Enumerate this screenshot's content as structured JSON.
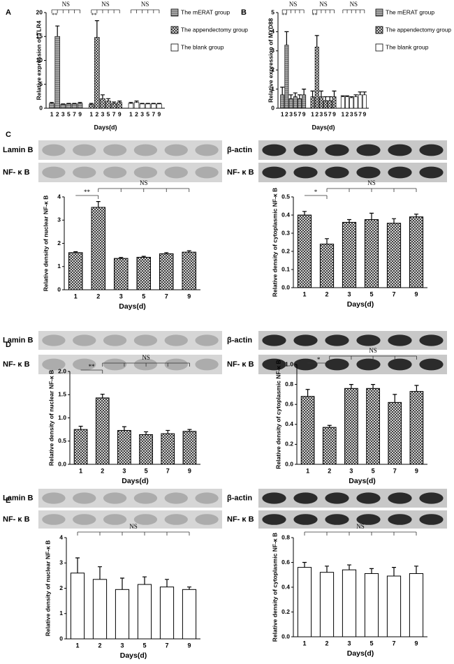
{
  "panel_labels": [
    "A",
    "B",
    "C",
    "D",
    "E"
  ],
  "blots": [
    {
      "left": [
        "Lamin B",
        "NF- κ B"
      ],
      "right": [
        "β-actin",
        "NF- κ B"
      ]
    },
    {
      "left": [
        "Lamin B",
        "NF- κ B"
      ],
      "right": [
        "β-actin",
        "NF- κ B"
      ]
    },
    {
      "left": [
        "Lamin B",
        "NF- κ B"
      ],
      "right": [
        "β-actin",
        "NF- κ B"
      ]
    }
  ],
  "chart_data": [
    {
      "type": "grouped_bar",
      "ylabel": "Relative expression of TLR4",
      "xlabel": "Days(d)",
      "categories": [
        "1",
        "2",
        "3",
        "5",
        "7",
        "9"
      ],
      "ylim": [
        0,
        20
      ],
      "yticks": [
        0,
        5,
        10,
        15,
        20
      ],
      "series": [
        {
          "name": "The mERAT group",
          "color": "#555555",
          "pattern": "hlines",
          "values": [
            1,
            15,
            0.8,
            0.9,
            0.9,
            1
          ],
          "errors": [
            0.2,
            2.2,
            0.1,
            0.1,
            0.1,
            0.2
          ],
          "annotations": [
            "**",
            "NS"
          ]
        },
        {
          "name": "The appendectomy group",
          "color": "#222222",
          "pattern": "cross",
          "values": [
            0.8,
            14.8,
            2,
            1.5,
            1,
            1.2
          ],
          "errors": [
            0.2,
            3.5,
            0.8,
            0.5,
            0.3,
            0.3
          ],
          "annotations": [
            "**",
            "NS"
          ]
        },
        {
          "name": "The blank group",
          "color": "#ffffff",
          "pattern": "none",
          "values": [
            1,
            1.2,
            0.9,
            0.9,
            0.9,
            0.9
          ],
          "errors": [
            0.2,
            0.3,
            0.1,
            0.1,
            0.1,
            0.1
          ],
          "annotations": [
            "NS"
          ]
        }
      ]
    },
    {
      "type": "grouped_bar",
      "ylabel": "Relative expression of MYD88",
      "xlabel": "Days(d)",
      "categories": [
        "1",
        "2",
        "3",
        "5",
        "7",
        "9"
      ],
      "ylim": [
        0,
        5
      ],
      "yticks": [
        0,
        1,
        2,
        3,
        4,
        5
      ],
      "series": [
        {
          "name": "The mERAT group",
          "color": "#555555",
          "pattern": "hlines",
          "values": [
            0.7,
            3.3,
            0.5,
            0.6,
            0.5,
            0.7
          ],
          "errors": [
            0.4,
            0.7,
            0.2,
            0.2,
            0.2,
            0.3
          ],
          "annotations": [
            "**",
            "NS"
          ]
        },
        {
          "name": "The appendectomy group",
          "color": "#222222",
          "pattern": "cross",
          "values": [
            0.6,
            3.2,
            0.6,
            0.4,
            0.4,
            0.6
          ],
          "errors": [
            0.3,
            0.6,
            0.3,
            0.2,
            0.2,
            0.3
          ],
          "annotations": [
            "**",
            "NS"
          ]
        },
        {
          "name": "The blank group",
          "color": "#ffffff",
          "pattern": "none",
          "values": [
            0.6,
            0.6,
            0.55,
            0.6,
            0.7,
            0.7
          ],
          "errors": [
            0.05,
            0.05,
            0.05,
            0.1,
            0.15,
            0.15
          ],
          "annotations": [
            "NS"
          ]
        }
      ]
    },
    {
      "type": "bar",
      "ylabel": "Relative density of nuclear NF-κ B",
      "xlabel": "Days(d)",
      "categories": [
        "1",
        "2",
        "3",
        "5",
        "7",
        "9"
      ],
      "ylim": [
        0,
        4
      ],
      "yticks": [
        0,
        1,
        2,
        3,
        4
      ],
      "color": "#222222",
      "pattern": "cross",
      "values": [
        1.6,
        3.55,
        1.35,
        1.4,
        1.55,
        1.62
      ],
      "errors": [
        0.04,
        0.25,
        0.04,
        0.04,
        0.05,
        0.06
      ],
      "annotations": [
        "**",
        "NS"
      ]
    },
    {
      "type": "bar",
      "ylabel": "Relative density of cytoplasmic NF-κ B",
      "xlabel": "Days(d)",
      "categories": [
        "1",
        "2",
        "3",
        "5",
        "7",
        "9"
      ],
      "ylim": [
        0,
        0.5
      ],
      "yticks": [
        {
          "value": 0,
          "label": "0.0"
        },
        0.1,
        0.2,
        0.3,
        0.4,
        0.5
      ],
      "color": "#222222",
      "pattern": "cross",
      "values": [
        0.4,
        0.24,
        0.36,
        0.375,
        0.355,
        0.39
      ],
      "errors": [
        0.02,
        0.03,
        0.015,
        0.035,
        0.025,
        0.015
      ],
      "annotations": [
        "*",
        "NS"
      ]
    },
    {
      "type": "bar",
      "ylabel": "Relative density of nuclear NF-κ B",
      "xlabel": "Days(d)",
      "categories": [
        "1",
        "2",
        "3",
        "5",
        "7",
        "9"
      ],
      "ylim": [
        0,
        2
      ],
      "yticks": [
        {
          "value": 0,
          "label": "0.0"
        },
        0.5,
        {
          "value": 1,
          "label": "1.0"
        },
        1.5,
        {
          "value": 2,
          "label": "2.0"
        }
      ],
      "color": "#222222",
      "pattern": "cross",
      "values": [
        0.75,
        1.43,
        0.73,
        0.64,
        0.66,
        0.71
      ],
      "errors": [
        0.07,
        0.08,
        0.08,
        0.06,
        0.07,
        0.04
      ],
      "annotations": [
        "**",
        "NS"
      ]
    },
    {
      "type": "bar",
      "ylabel": "Relative density of cytoplasmic NF-κ B",
      "xlabel": "Days(d)",
      "categories": [
        "1",
        "2",
        "3",
        "5",
        "7",
        "9"
      ],
      "ylim": [
        0,
        1
      ],
      "yticks": [
        {
          "value": 0,
          "label": "0.0"
        },
        0.2,
        0.4,
        0.6,
        0.8,
        {
          "value": 1,
          "label": "1.0"
        }
      ],
      "color": "#222222",
      "pattern": "cross",
      "values": [
        0.68,
        0.37,
        0.76,
        0.76,
        0.62,
        0.73
      ],
      "errors": [
        0.07,
        0.02,
        0.04,
        0.04,
        0.08,
        0.06
      ],
      "annotations": [
        "*",
        "NS"
      ]
    },
    {
      "type": "bar",
      "ylabel": "Relative density of nuclear NF-κ B",
      "xlabel": "Days(d)",
      "categories": [
        "1",
        "2",
        "3",
        "5",
        "7",
        "9"
      ],
      "ylim": [
        0,
        4
      ],
      "yticks": [
        0,
        1,
        2,
        3,
        4
      ],
      "color": "#ffffff",
      "pattern": "none",
      "values": [
        2.6,
        2.35,
        1.95,
        2.15,
        2.05,
        1.95
      ],
      "errors": [
        0.6,
        0.5,
        0.45,
        0.3,
        0.3,
        0.1
      ],
      "annotations": [
        "NS"
      ]
    },
    {
      "type": "bar",
      "ylabel": "Relative density of cytoplasmic NF-κ B",
      "xlabel": "Days(d)",
      "categories": [
        "1",
        "2",
        "3",
        "5",
        "7",
        "9"
      ],
      "ylim": [
        0,
        0.8
      ],
      "yticks": [
        {
          "value": 0,
          "label": "0.0"
        },
        0.2,
        0.4,
        0.6,
        0.8
      ],
      "color": "#ffffff",
      "pattern": "none",
      "values": [
        0.56,
        0.52,
        0.54,
        0.51,
        0.49,
        0.51
      ],
      "errors": [
        0.04,
        0.05,
        0.04,
        0.04,
        0.07,
        0.06
      ],
      "annotations": [
        "NS"
      ]
    }
  ]
}
